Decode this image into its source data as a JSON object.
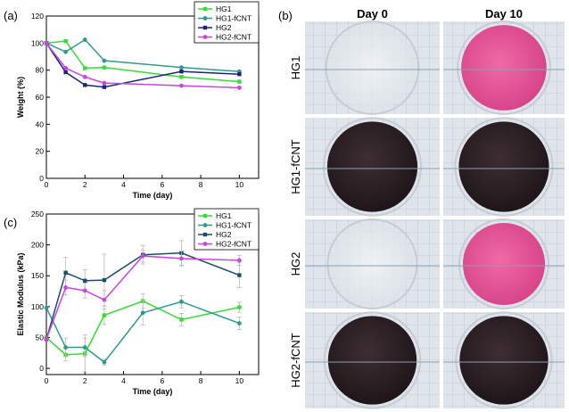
{
  "chart_data": [
    {
      "type": "line",
      "panel": "(a)",
      "xlabel": "Time (day)",
      "ylabel": "Weight (%)",
      "xlim": [
        0,
        11
      ],
      "ylim": [
        0,
        120
      ],
      "xticks": [
        0,
        2,
        4,
        6,
        8,
        10
      ],
      "yticks": [
        0,
        20,
        40,
        60,
        80,
        100,
        120
      ],
      "legend_position": "top-right",
      "series": [
        {
          "name": "HG1",
          "color": "#33dd33",
          "marker": "square",
          "x": [
            0,
            1,
            2,
            3,
            7,
            10
          ],
          "y": [
            100,
            101.5,
            81.5,
            82,
            75,
            71.5
          ]
        },
        {
          "name": "HG1-fCNT",
          "color": "#2e9b8c",
          "marker": "circle",
          "x": [
            0,
            1,
            2,
            3,
            7,
            10
          ],
          "y": [
            100,
            93.5,
            102.5,
            87,
            82,
            79
          ]
        },
        {
          "name": "HG2",
          "color": "#1a237e",
          "marker": "square",
          "x": [
            0,
            1,
            2,
            3,
            7,
            10
          ],
          "y": [
            100,
            78.5,
            69,
            67.5,
            79,
            77
          ]
        },
        {
          "name": "HG2-fCNT",
          "color": "#cc44dd",
          "marker": "circle",
          "x": [
            0,
            1,
            2,
            3,
            7,
            10
          ],
          "y": [
            100,
            81.5,
            75,
            70.5,
            68.5,
            67
          ]
        }
      ]
    },
    {
      "type": "line",
      "panel": "(c)",
      "xlabel": "Time (day)",
      "ylabel": "Elastic Modulus (kPa)",
      "xlim": [
        0,
        11
      ],
      "ylim": [
        -10,
        250
      ],
      "xticks": [
        0,
        2,
        4,
        6,
        8,
        10
      ],
      "yticks": [
        0,
        50,
        100,
        150,
        200,
        250
      ],
      "legend_position": "top-right",
      "series": [
        {
          "name": "HG1",
          "color": "#33dd33",
          "marker": "square",
          "x": [
            0,
            1,
            2,
            3,
            5,
            7,
            10
          ],
          "y": [
            50,
            22,
            24,
            86,
            109,
            79,
            99
          ],
          "err": [
            0,
            10,
            30,
            15,
            12,
            10,
            8
          ]
        },
        {
          "name": "HG1-fCNT",
          "color": "#2e9b8c",
          "marker": "circle",
          "x": [
            0,
            1,
            2,
            3,
            5,
            7,
            10
          ],
          "y": [
            98,
            34,
            34,
            10,
            90,
            108,
            73
          ],
          "err": [
            0,
            15,
            15,
            5,
            20,
            10,
            10
          ]
        },
        {
          "name": "HG2",
          "color": "#1a4d6e",
          "marker": "square",
          "x": [
            0,
            1,
            2,
            3,
            5,
            7,
            10
          ],
          "y": [
            47,
            155,
            142,
            143,
            184,
            187,
            151
          ],
          "err": [
            0,
            25,
            18,
            42,
            15,
            20,
            20
          ]
        },
        {
          "name": "HG2-fCNT",
          "color": "#cc44dd",
          "marker": "circle",
          "x": [
            0,
            1,
            2,
            3,
            5,
            7,
            10
          ],
          "y": [
            47,
            131,
            126,
            111,
            182,
            178,
            175
          ],
          "err": [
            0,
            12,
            12,
            15,
            10,
            12,
            8
          ]
        }
      ]
    }
  ],
  "panel_b": {
    "letter": "(b)",
    "columns": [
      "Day 0",
      "Day 10"
    ],
    "rows": [
      {
        "label": "HG1",
        "day0": "clear",
        "day10": "pink"
      },
      {
        "label": "HG1-fCNT",
        "day0": "dark",
        "day10": "dark"
      },
      {
        "label": "HG2",
        "day0": "clear",
        "day10": "pink"
      },
      {
        "label": "HG2-fCNT",
        "day0": "dark",
        "day10": "dark"
      }
    ]
  }
}
